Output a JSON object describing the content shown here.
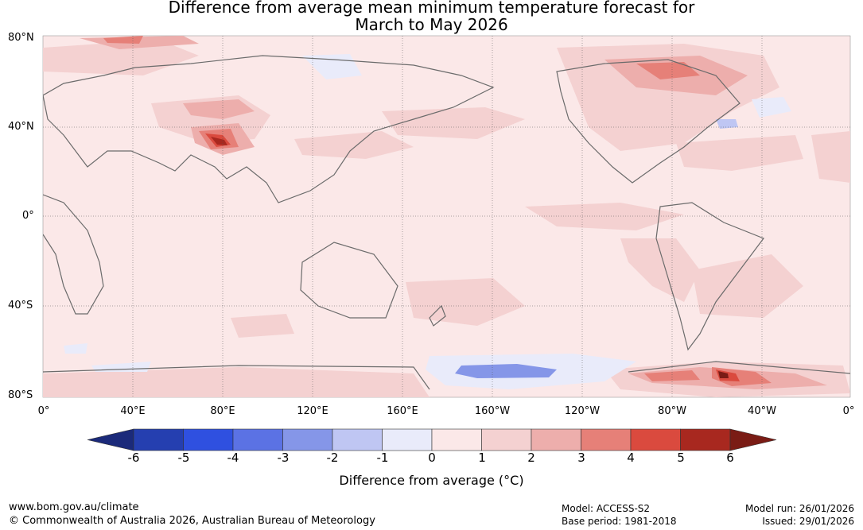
{
  "title": {
    "line1": "Difference from average mean minimum temperature forecast for",
    "line2": "March to May 2026"
  },
  "map": {
    "lat_labels": [
      "80°N",
      "40°N",
      "0°",
      "40°S",
      "80°S"
    ],
    "lon_labels": [
      "0°",
      "40°E",
      "80°E",
      "120°E",
      "160°E",
      "160°W",
      "120°W",
      "80°W",
      "40°W",
      "0°"
    ]
  },
  "colorbar": {
    "ticks": [
      "-6",
      "-5",
      "-4",
      "-3",
      "-2",
      "-1",
      "0",
      "1",
      "2",
      "3",
      "4",
      "5",
      "6"
    ],
    "colors": [
      "#1b2a7a",
      "#253fb0",
      "#2f50e0",
      "#5b72e4",
      "#8596e8",
      "#bfc6f3",
      "#e9ebfa",
      "#fbe8e8",
      "#f4d1d1",
      "#edaeac",
      "#e68078",
      "#da4a3e",
      "#a8281f",
      "#7a1c15"
    ],
    "label": "Difference from average (°C)"
  },
  "footer": {
    "website": "www.bom.gov.au/climate",
    "copyright": "© Commonwealth of Australia 2026, Australian Bureau of Meteorology",
    "model": "Model: ACCESS-S2",
    "base_period": "Base period: 1981-2018",
    "model_run": "Model run: 26/01/2026",
    "issued": "Issued: 29/01/2026"
  }
}
